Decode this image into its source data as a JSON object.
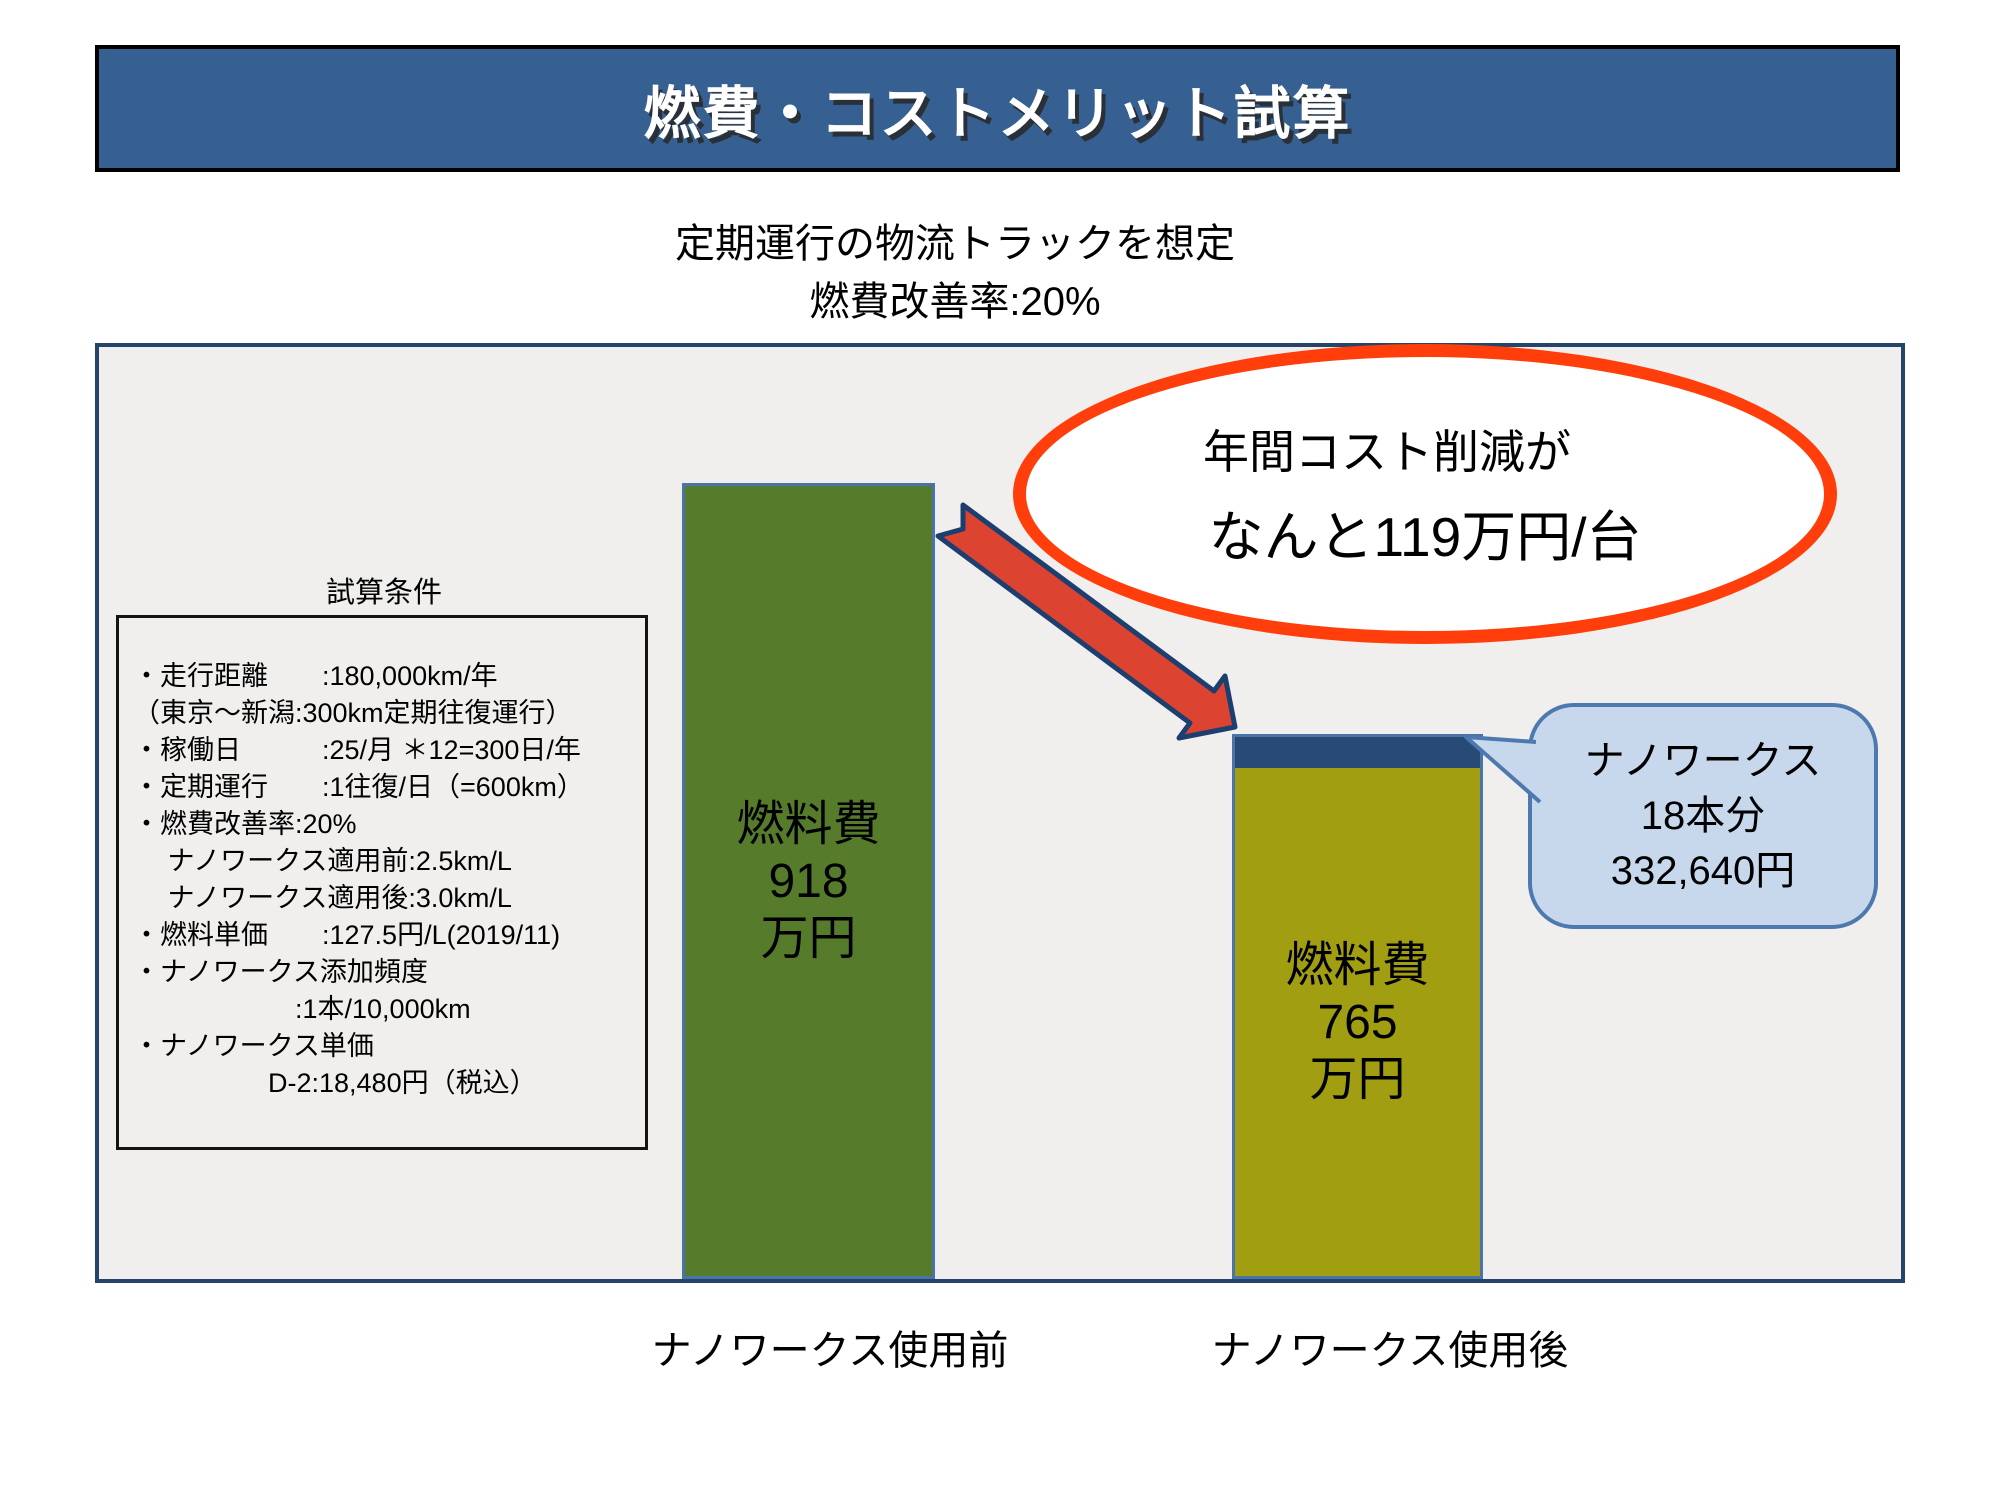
{
  "banner": {
    "title": "燃費・コストメリット試算"
  },
  "subtitle": {
    "line1": "定期運行の物流トラックを想定",
    "line2": "燃費改善率:20%"
  },
  "conditions": {
    "heading": "試算条件",
    "lines": [
      "・走行距離　　:180,000km/年",
      "（東京～新潟:300km定期往復運行）",
      "・稼働日　　　:25/月 ＊12=300日/年",
      "・定期運行　　:1往復/日（=600km）",
      "・燃費改善率:20%",
      "　 ナノワークス適用前:2.5km/L",
      "　 ナノワークス適用後:3.0km/L",
      "・燃料単価　　:127.5円/L(2019/11)",
      "・ナノワークス添加頻度",
      "　　　　　　:1本/10,000km",
      "・ナノワークス単価",
      "　　　　　D-2:18,480円（税込）"
    ]
  },
  "chart": {
    "bar_before": {
      "label_lines": [
        "燃料費",
        "918",
        "万円"
      ],
      "axis_label": "ナノワークス使用前"
    },
    "bar_after": {
      "label_lines": [
        "燃料費",
        "765",
        "万円"
      ],
      "axis_label": "ナノワークス使用後"
    }
  },
  "callout": {
    "line1": "年間コスト削減が",
    "line2": "なんと119万円/台"
  },
  "bubble": {
    "lines": [
      "ナノワークス",
      "18本分",
      "332,640円"
    ]
  },
  "colors": {
    "banner_bg": "#366092",
    "panel_bg": "#f0efee",
    "panel_border": "#254469",
    "bar_before_fill": "#567c2b",
    "bar_after_fill": "#a29e11",
    "bar_after_cap": "#274b74",
    "bar_border": "#4a74a8",
    "ellipse_border": "#ff3e0c",
    "arrow_fill": "#dc4431",
    "arrow_outline": "#1d3f70",
    "bubble_bg": "#c8d8ec",
    "bubble_border": "#4e79ae"
  },
  "chart_data": {
    "type": "bar",
    "title": "燃費・コストメリット試算",
    "subtitle": "定期運行の物流トラックを想定 燃費改善率:20%",
    "categories": [
      "ナノワークス使用前",
      "ナノワークス使用後"
    ],
    "series": [
      {
        "name": "燃料費",
        "unit": "万円",
        "values": [
          918,
          765
        ]
      },
      {
        "name": "ナノワークス費用",
        "unit": "万円",
        "values": [
          0,
          33.264
        ]
      }
    ],
    "bar_labels": [
      "燃料費 918 万円",
      "燃料費 765 万円"
    ],
    "annotations": [
      "年間コスト削減が なんと119万円/台",
      "ナノワークス 18本分 332,640円"
    ],
    "legend": false,
    "grid": false
  }
}
